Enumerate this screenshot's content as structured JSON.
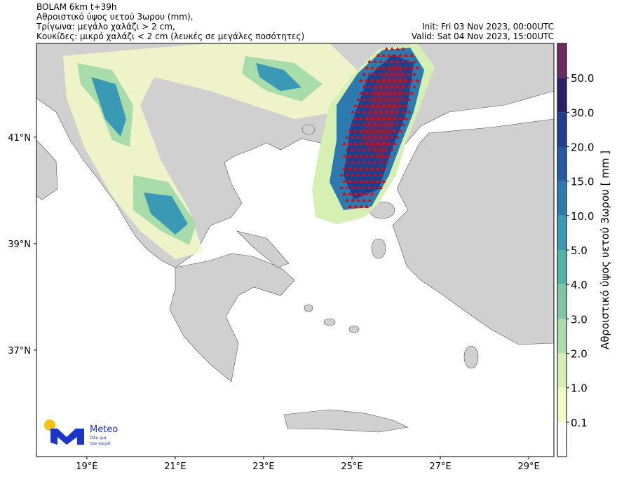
{
  "header": {
    "title_lines": [
      "BOLAM 6km t+39h",
      "Αθροιστικό ύψος υετού 3ωρου (mm),",
      "Τρίγωνα: μεγάλο χαλάζι > 2 cm,",
      "Κουκίδες: μικρό χαλάζι < 2 cm (λευκές σε μεγάλες ποσότητες)"
    ],
    "init": "Init: Fri 03 Nov 2023, 00:00UTC",
    "valid": "Valid: Sat 04 Nov 2023, 15:00UTC"
  },
  "map": {
    "lonlim": [
      17.86,
      29.57
    ],
    "latlim": [
      35.0,
      42.76
    ],
    "lonticks": [
      {
        "value": 19,
        "label": "19°E"
      },
      {
        "value": 21,
        "label": "21°E"
      },
      {
        "value": 23,
        "label": "23°E"
      },
      {
        "value": 25,
        "label": "25°E"
      },
      {
        "value": 27,
        "label": "27°E"
      },
      {
        "value": 29,
        "label": "29°E"
      }
    ],
    "latticks": [
      {
        "value": 41,
        "label": "41°N"
      },
      {
        "value": 39,
        "label": "39°N"
      },
      {
        "value": 37,
        "label": "37°N"
      }
    ]
  },
  "colorbar": {
    "label": "Αθροιστικό ύψος υετού 3ωρου [ mm ]",
    "colors": [
      "#ffffff",
      "#f4f9c8",
      "#d6efb3",
      "#a9dcab",
      "#7cc8a6",
      "#52b4a9",
      "#3a9ab5",
      "#2c7ab0",
      "#245ca1",
      "#1f3e8c",
      "#2a1f68",
      "#6b2b5e"
    ],
    "ticks": [
      0.1,
      {
        "value": 1,
        "label": "1.0"
      },
      {
        "value": 2,
        "label": "2.0"
      },
      {
        "value": 3,
        "label": "3.0"
      },
      {
        "value": 4,
        "label": "4.0"
      },
      {
        "value": 5,
        "label": "5.0"
      },
      {
        "value": 10,
        "label": "10.0"
      },
      {
        "value": 15,
        "label": "15.0"
      },
      {
        "value": 20,
        "label": "20.0"
      },
      {
        "value": 30,
        "label": "30.0"
      },
      {
        "value": 50,
        "label": "50.0"
      }
    ]
  },
  "logo": {
    "name": "Meteo",
    "tagline": [
      "Όλα για",
      "τον καιρό"
    ]
  }
}
